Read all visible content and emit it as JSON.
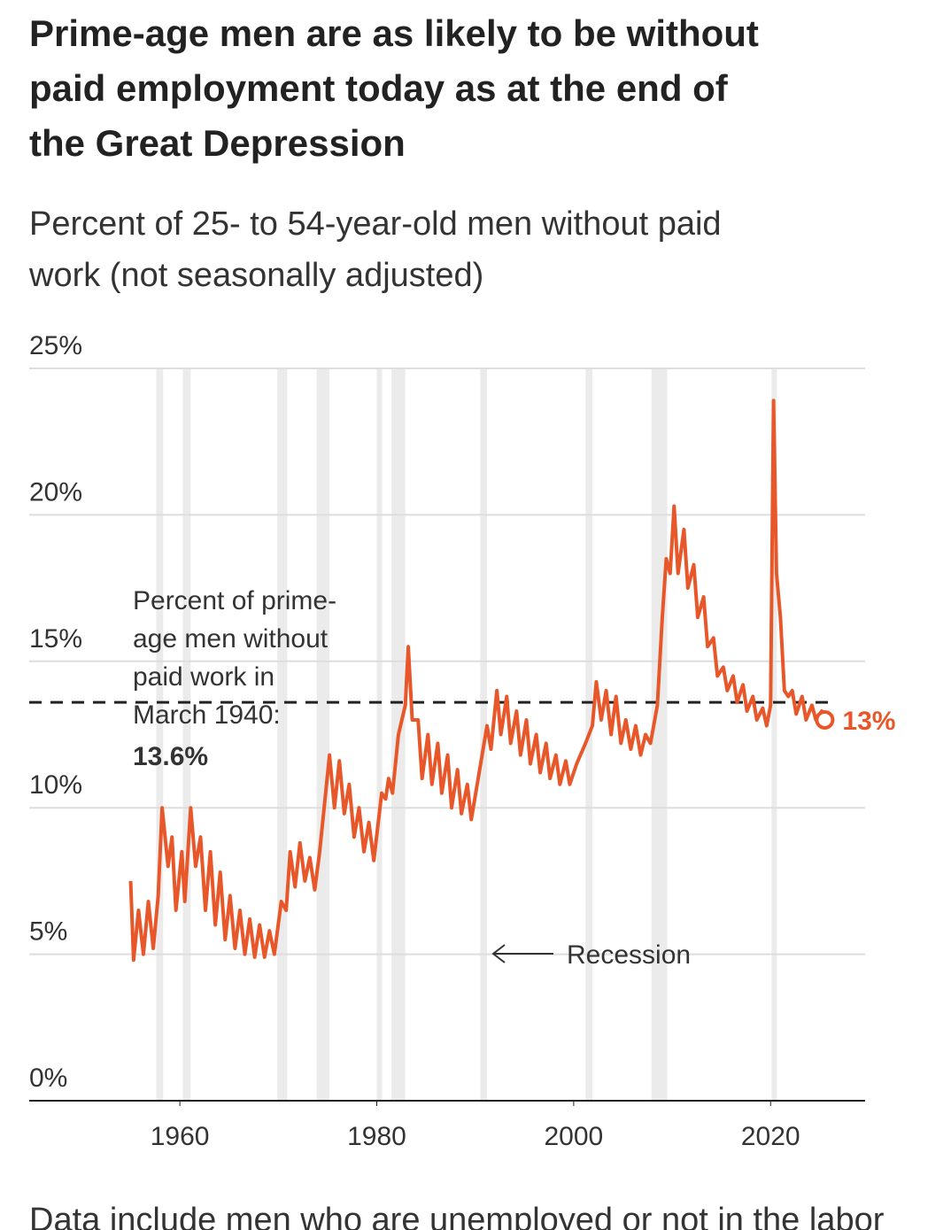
{
  "chart_data": {
    "type": "line",
    "title_lines": [
      "Prime-age men are as likely to be without",
      "paid employment today as at the end of",
      "the Great Depression"
    ],
    "subtitle_lines": [
      "Percent of 25- to 54-year-old men without paid",
      "work (not seasonally adjusted)"
    ],
    "footnote": "Data include men who are unemployed or not in the labor",
    "xlim": [
      1944.7,
      2029.6
    ],
    "xticks": [
      1960,
      1980,
      2000,
      2020
    ],
    "ylim": [
      0,
      25
    ],
    "yticks": [
      {
        "value": 0,
        "label": "0%"
      },
      {
        "value": 5,
        "label": "5%"
      },
      {
        "value": 10,
        "label": "10%"
      },
      {
        "value": 15,
        "label": "15%"
      },
      {
        "value": 20,
        "label": "20%"
      },
      {
        "value": 25,
        "label": "25%"
      }
    ],
    "grid": true,
    "recessions": [
      [
        1957.6,
        1958.3
      ],
      [
        1960.3,
        1961.1
      ],
      [
        1969.9,
        1970.9
      ],
      [
        1973.9,
        1975.2
      ],
      [
        1980.0,
        1980.5
      ],
      [
        1981.5,
        1982.9
      ],
      [
        1990.5,
        1991.2
      ],
      [
        2001.2,
        2001.9
      ],
      [
        2007.9,
        2009.5
      ],
      [
        2020.1,
        2020.3
      ]
    ],
    "recession_label": "Recession",
    "reference": {
      "value": 13.6,
      "label_lines": [
        "Percent of prime-",
        "age men without",
        "paid work in",
        "March 1940:"
      ],
      "value_label": "13.6%"
    },
    "end_label": "13%",
    "series": [
      {
        "name": "Percent without paid work",
        "color": "#e8572a",
        "x": [
          1955,
          1955.3,
          1955.8,
          1956.3,
          1956.8,
          1957.3,
          1957.8,
          1958.2,
          1958.8,
          1959.2,
          1959.6,
          1960.2,
          1960.5,
          1961.1,
          1961.6,
          1962.1,
          1962.6,
          1963.1,
          1963.6,
          1964.1,
          1964.6,
          1965.1,
          1965.6,
          1966.1,
          1966.6,
          1967.1,
          1967.6,
          1968.1,
          1968.6,
          1969.1,
          1969.6,
          1970.3,
          1970.8,
          1971.2,
          1971.7,
          1972.2,
          1972.7,
          1973.2,
          1973.7,
          1974.2,
          1975.2,
          1975.7,
          1976.2,
          1976.7,
          1977.2,
          1977.7,
          1978.2,
          1978.7,
          1979.2,
          1979.7,
          1980.5,
          1980.9,
          1981.2,
          1981.6,
          1982.2,
          1982.9,
          1983.2,
          1983.6,
          1984.2,
          1984.6,
          1985.2,
          1985.6,
          1986.2,
          1986.6,
          1987.2,
          1987.6,
          1988.2,
          1988.6,
          1989.2,
          1989.6,
          1990.3,
          1991.2,
          1991.6,
          1992.2,
          1992.6,
          1993.2,
          1993.6,
          1994.2,
          1994.6,
          1995.2,
          1995.6,
          1996.2,
          1996.6,
          1997.2,
          1997.6,
          1998.2,
          1998.6,
          1999.2,
          1999.6,
          2000.3,
          2001.2,
          2001.9,
          2002.3,
          2002.8,
          2003.3,
          2003.8,
          2004.3,
          2004.8,
          2005.3,
          2005.8,
          2006.3,
          2006.8,
          2007.3,
          2007.8,
          2008.5,
          2009.0,
          2009.4,
          2009.8,
          2010.2,
          2010.6,
          2011.2,
          2011.6,
          2012.2,
          2012.6,
          2013.2,
          2013.6,
          2014.2,
          2014.6,
          2015.2,
          2015.6,
          2016.2,
          2016.6,
          2017.2,
          2017.6,
          2018.2,
          2018.6,
          2019.2,
          2019.6,
          2020.0,
          2020.3,
          2020.6,
          2021.0,
          2021.4,
          2021.8,
          2022.2,
          2022.6,
          2023.2,
          2023.6,
          2024.2,
          2024.6,
          2025.2,
          2025.5
        ],
        "values": [
          7.5,
          4.8,
          6.5,
          5.0,
          6.8,
          5.2,
          7.0,
          10.0,
          8.0,
          9.0,
          6.5,
          8.5,
          6.8,
          10.0,
          8.0,
          9.0,
          6.5,
          8.5,
          6.0,
          7.8,
          5.5,
          7.0,
          5.2,
          6.5,
          5.0,
          6.2,
          4.9,
          6.0,
          4.9,
          5.8,
          5.0,
          6.8,
          6.5,
          8.5,
          7.3,
          8.8,
          7.5,
          8.3,
          7.2,
          8.5,
          11.8,
          10.0,
          11.6,
          9.8,
          10.8,
          9.0,
          10.0,
          8.5,
          9.5,
          8.2,
          10.5,
          10.3,
          11.0,
          10.5,
          12.5,
          13.5,
          15.5,
          13.0,
          13.0,
          11.0,
          12.5,
          10.8,
          12.2,
          10.5,
          11.8,
          10.0,
          11.3,
          9.8,
          10.8,
          9.6,
          11.0,
          12.8,
          12.0,
          14.0,
          12.5,
          13.8,
          12.2,
          13.3,
          11.8,
          13.0,
          11.5,
          12.5,
          11.2,
          12.2,
          11.0,
          11.8,
          10.8,
          11.6,
          10.8,
          11.5,
          12.2,
          12.8,
          14.3,
          13.0,
          14.0,
          12.5,
          13.8,
          12.2,
          13.0,
          12.0,
          12.8,
          11.8,
          12.5,
          12.2,
          13.5,
          16.5,
          18.5,
          18.0,
          20.3,
          18.0,
          19.5,
          17.5,
          18.3,
          16.5,
          17.2,
          15.5,
          15.8,
          14.5,
          14.8,
          14.0,
          14.5,
          13.6,
          14.2,
          13.3,
          13.8,
          13.0,
          13.4,
          12.8,
          13.5,
          23.9,
          18.0,
          16.5,
          14.0,
          13.8,
          14.0,
          13.2,
          13.8,
          13.0,
          13.5,
          13.0,
          13.3,
          13.0
        ]
      }
    ]
  }
}
